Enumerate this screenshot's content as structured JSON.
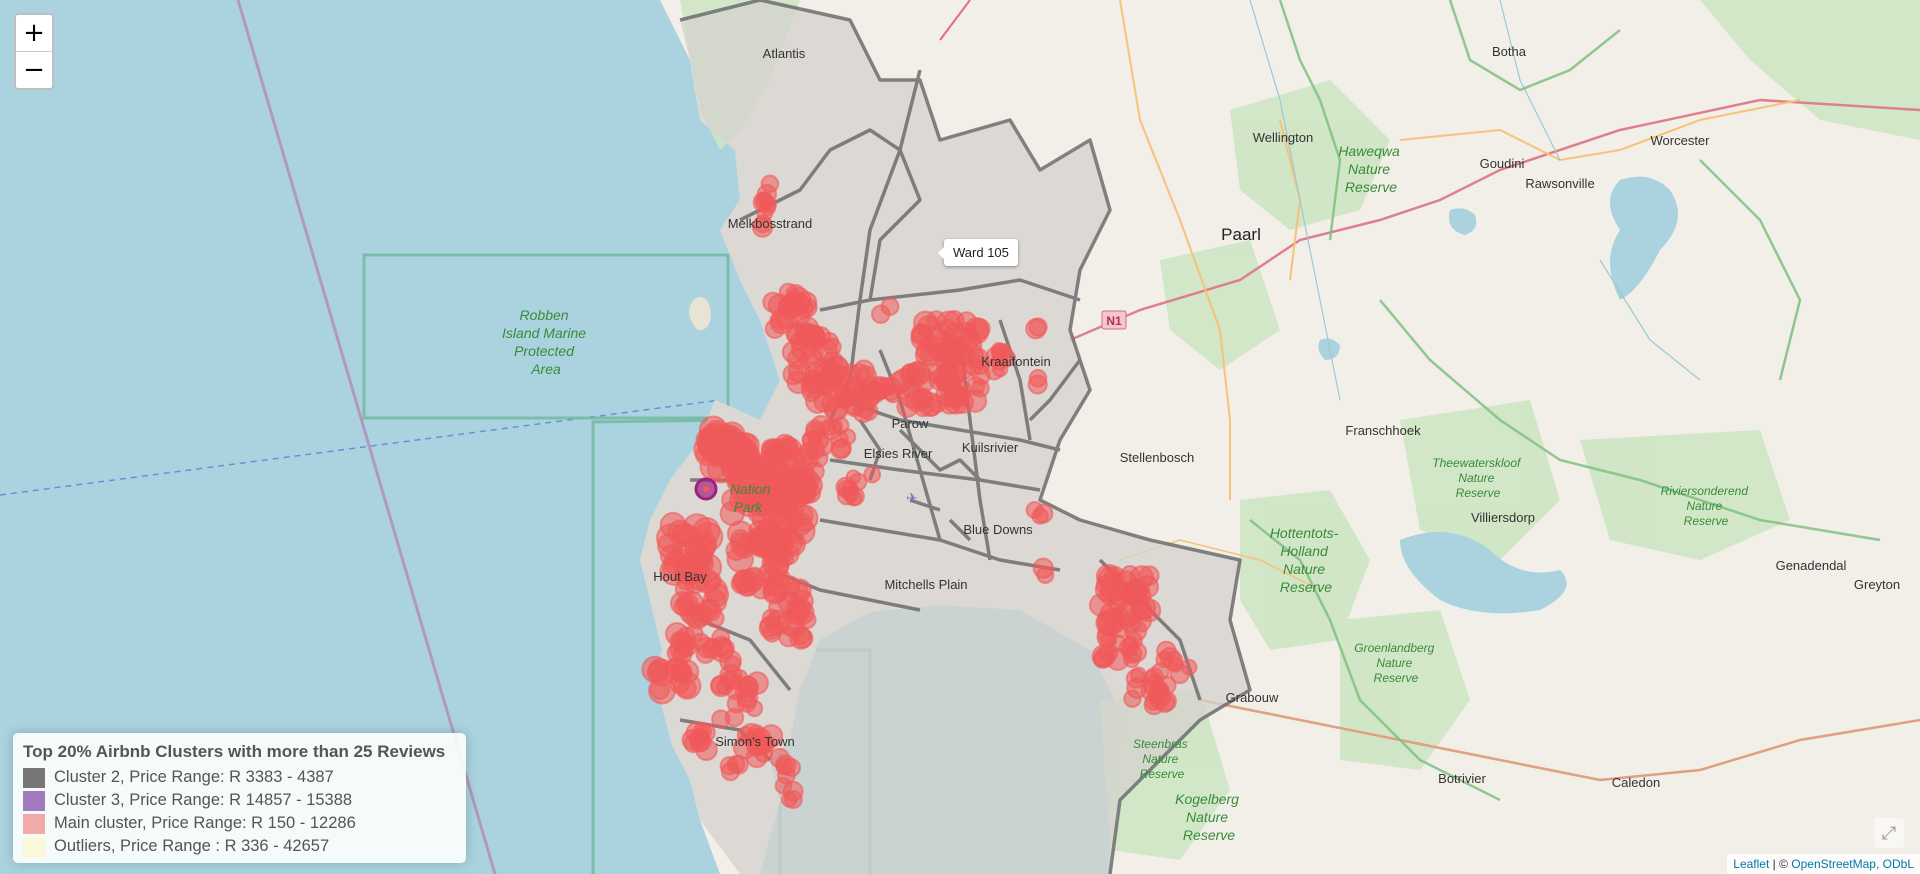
{
  "map": {
    "places": {
      "atlantis": "Atlantis",
      "melkbosstrand": "Melkbosstrand",
      "kraaifontein": "Kraaifontein",
      "parow": "Parow",
      "elsies_river": "Elsies River",
      "kuils_river": "Kuilsrivier",
      "blue_downs": "Blue Downs",
      "mitchells_plain": "Mitchells Plain",
      "hout_bay": "Hout Bay",
      "simons_town": "Simon's Town",
      "grabouw": "Grabouw",
      "stellenbosch": "Stellenbosch",
      "paarl": "Paarl",
      "wellington": "Wellington",
      "franschhoek": "Franschhoek",
      "villiersdorp": "Villiersdorp",
      "genadendal": "Genadendal",
      "greyton": "Greyton",
      "botha": "Botha",
      "goudini": "Goudini",
      "rawsonville": "Rawsonville",
      "worcester": "Worcester",
      "botrivier": "Botrivier",
      "caledon": "Caledon"
    },
    "reserves": {
      "robben": [
        "Robben",
        "Island Marine",
        "Protected",
        "Area"
      ],
      "haweqwa": [
        "Haweqwa",
        "Nature",
        "Reserve"
      ],
      "theewaterskloof": [
        "Theewaterskloof",
        "Nature",
        "Reserve"
      ],
      "riviersonderend": [
        "Riviersonderend",
        "Nature",
        "Reserve"
      ],
      "hottentots": [
        "Hottentots-",
        "Holland",
        "Nature",
        "Reserve"
      ],
      "groenlandberg": [
        "Groenlandberg",
        "Nature",
        "Reserve"
      ],
      "steenbras": [
        "Steenbras",
        "Nature",
        "Reserve"
      ],
      "kogelberg": [
        "Kogelberg",
        "Nature",
        "Reserve"
      ],
      "national_park": [
        "Nation",
        "Park"
      ]
    },
    "road_shield": "N1"
  },
  "zoom": {
    "in_label": "+",
    "out_label": "−"
  },
  "tooltip": {
    "text": "Ward 105"
  },
  "legend": {
    "title": "Top 20% Airbnb Clusters with more than 25 Reviews",
    "items": [
      {
        "label": "Cluster 2, Price Range: R 3383 - 4387",
        "color": "#777777"
      },
      {
        "label": "Cluster 3, Price Range: R 14857 - 15388",
        "color": "#a27bbe"
      },
      {
        "label": "Main cluster, Price Range: R 150 - 12286",
        "color": "#f1a9a9"
      },
      {
        "label": "Outliers, Price Range : R 336 - 42657",
        "color": "#fbf7d9"
      }
    ]
  },
  "attribution": {
    "leaflet": "Leaflet",
    "sep": " | © ",
    "osm": "OpenStreetMap, ODbL"
  },
  "colors": {
    "water": "#aad3df",
    "land": "#f2efe9",
    "wards": "#d6d4d1",
    "points": "#f05a5a",
    "outline": "#6e6e6e"
  }
}
